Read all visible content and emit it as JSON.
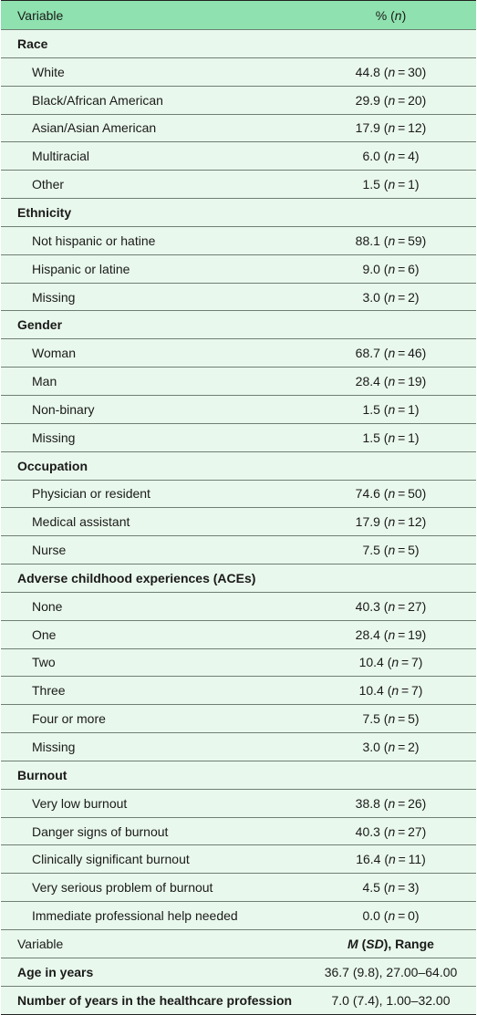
{
  "header": {
    "variable": "Variable",
    "pct_prefix": "% (",
    "pct_n": "n",
    "pct_suffix": ")"
  },
  "sections": [
    {
      "title": "Race",
      "rows": [
        {
          "label": "White",
          "pct": "44.8",
          "n": "30"
        },
        {
          "label": "Black/African American",
          "pct": "29.9",
          "n": "20"
        },
        {
          "label": "Asian/Asian American",
          "pct": "17.9",
          "n": "12"
        },
        {
          "label": "Multiracial",
          "pct": "6.0",
          "n": "4"
        },
        {
          "label": "Other",
          "pct": "1.5",
          "n": "1"
        }
      ]
    },
    {
      "title": "Ethnicity",
      "rows": [
        {
          "label": "Not hispanic or hatine",
          "pct": "88.1",
          "n": "59"
        },
        {
          "label": "Hispanic or latine",
          "pct": "9.0",
          "n": "6"
        },
        {
          "label": "Missing",
          "pct": "3.0",
          "n": "2"
        }
      ]
    },
    {
      "title": "Gender",
      "rows": [
        {
          "label": "Woman",
          "pct": "68.7",
          "n": "46"
        },
        {
          "label": "Man",
          "pct": "28.4",
          "n": "19"
        },
        {
          "label": "Non-binary",
          "pct": "1.5",
          "n": "1"
        },
        {
          "label": "Missing",
          "pct": "1.5",
          "n": "1"
        }
      ]
    },
    {
      "title": "Occupation",
      "rows": [
        {
          "label": "Physician or resident",
          "pct": "74.6",
          "n": "50"
        },
        {
          "label": "Medical assistant",
          "pct": "17.9",
          "n": "12"
        },
        {
          "label": "Nurse",
          "pct": "7.5",
          "n": "5"
        }
      ]
    },
    {
      "title": "Adverse childhood experiences (ACEs)",
      "rows": [
        {
          "label": "None",
          "pct": "40.3",
          "n": "27"
        },
        {
          "label": "One",
          "pct": "28.4",
          "n": "19"
        },
        {
          "label": "Two",
          "pct": "10.4",
          "n": "7"
        },
        {
          "label": "Three",
          "pct": "10.4",
          "n": "7"
        },
        {
          "label": "Four or more",
          "pct": "7.5",
          "n": "5"
        },
        {
          "label": "Missing",
          "pct": "3.0",
          "n": "2"
        }
      ]
    },
    {
      "title": "Burnout",
      "rows": [
        {
          "label": "Very low burnout",
          "pct": "38.8",
          "n": "26"
        },
        {
          "label": "Danger signs of burnout",
          "pct": "40.3",
          "n": "27"
        },
        {
          "label": "Clinically significant burnout",
          "pct": "16.4",
          "n": "11"
        },
        {
          "label": "Very serious problem of burnout",
          "pct": "4.5",
          "n": "3"
        },
        {
          "label": "Immediate professional help needed",
          "pct": "0.0",
          "n": "0"
        }
      ]
    }
  ],
  "header2": {
    "variable": "Variable",
    "m": "M",
    "open": " (",
    "sd": "SD",
    "close": "), Range"
  },
  "stats": [
    {
      "label": "Age in years",
      "value": "36.7 (9.8), 27.00–64.00"
    },
    {
      "label": "Number of years in the healthcare profession",
      "value": "7.0 (7.4), 1.00–32.00"
    }
  ]
}
